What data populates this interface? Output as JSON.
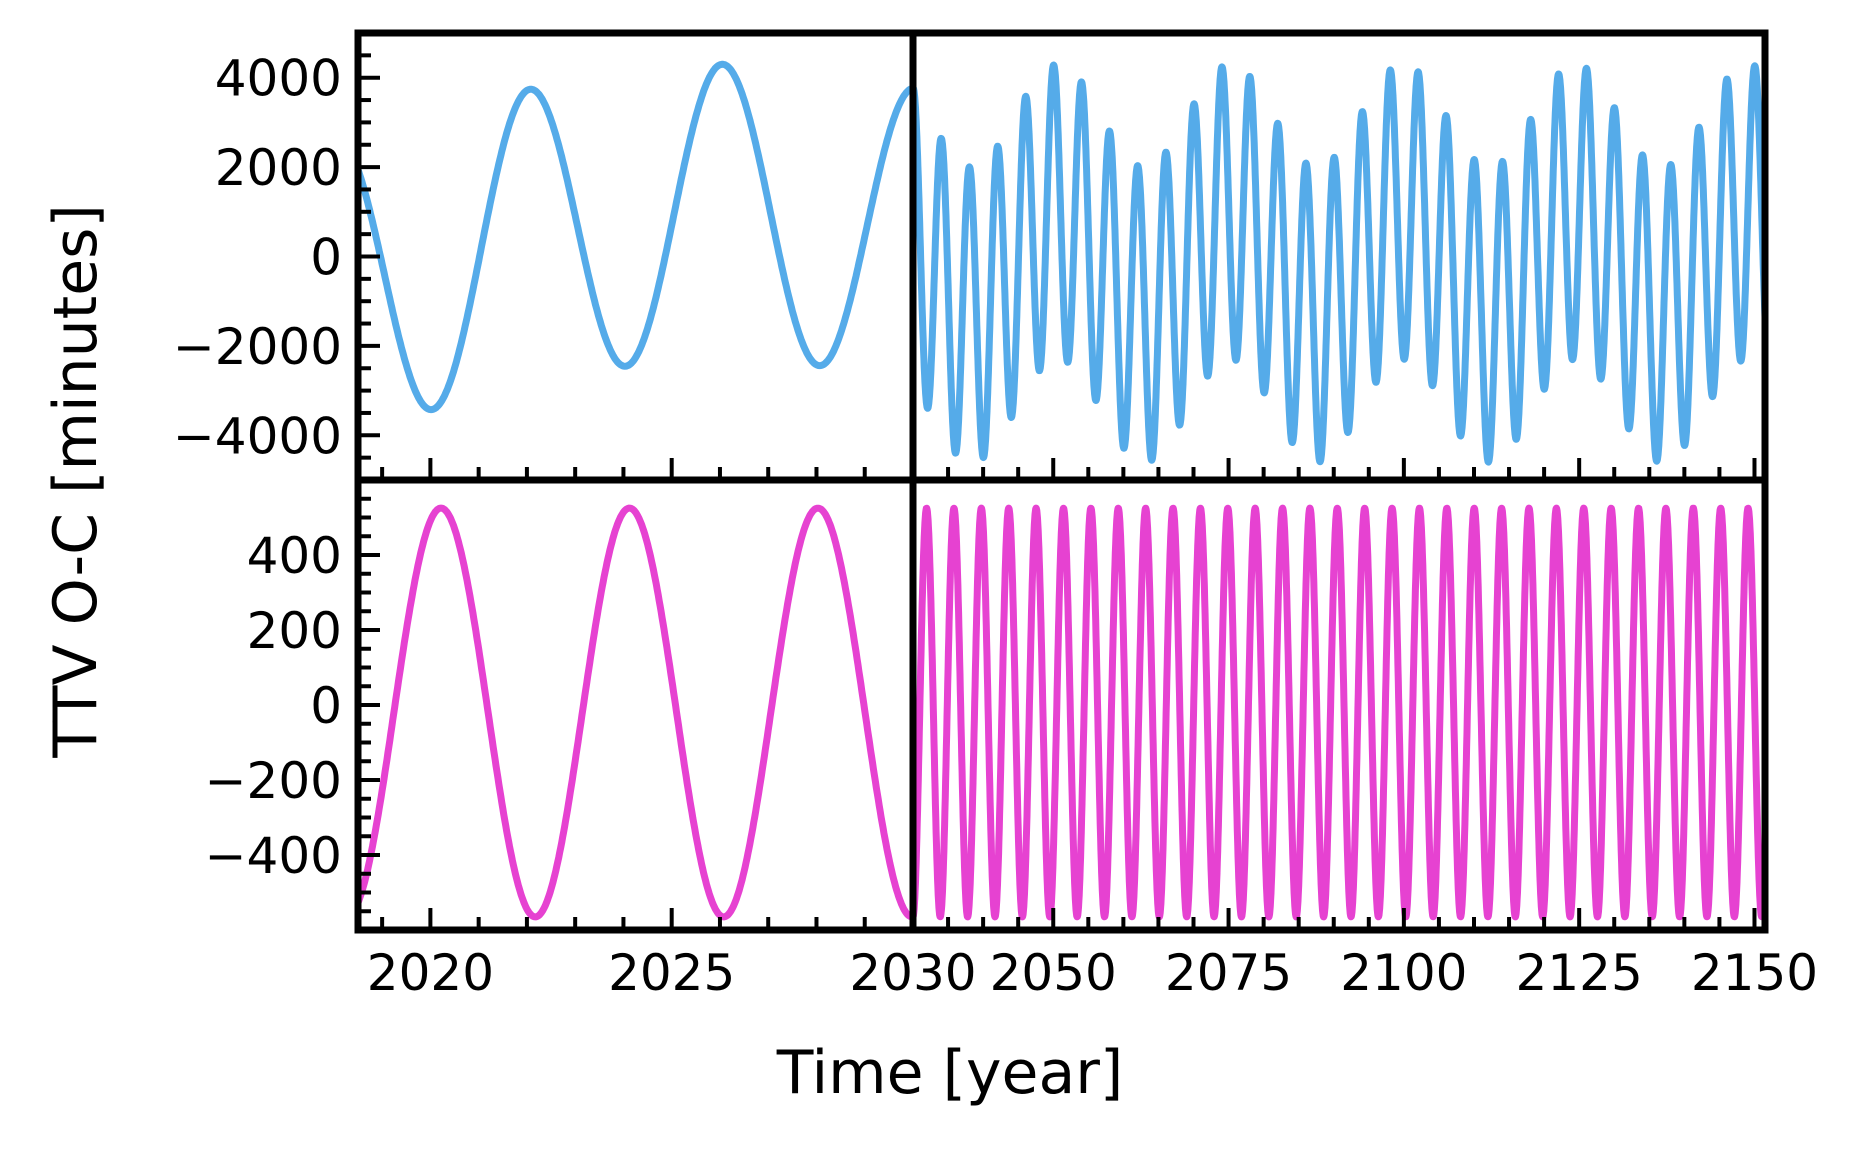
{
  "figure": {
    "background": "#ffffff"
  },
  "chart_data": {
    "type": "line",
    "title": "",
    "xlabel": "Time [year]",
    "ylabel": "TTV O-C [minutes]",
    "grid": false,
    "legend": false,
    "layout": "2x2 grid with broken x-axis: left column near-term window, right column long-term window; rows share y-ranges, columns share x-ranges",
    "columns": [
      {
        "id": "near-window",
        "xlim": [
          2018.5,
          2030
        ],
        "xticks": [
          2020,
          2025,
          2030
        ],
        "xtick_labels": [
          "2020",
          "2025",
          "2030"
        ],
        "xtick_minor_step": 1
      },
      {
        "id": "long-window",
        "xlim": [
          2030,
          2151.5
        ],
        "xticks": [
          2050,
          2075,
          2100,
          2125,
          2150
        ],
        "xtick_labels": [
          "2050",
          "2075",
          "2100",
          "2125",
          "2150"
        ],
        "xtick_minor_step": 5
      }
    ],
    "rows": [
      {
        "id": "ttv-series-blue",
        "color": "#55ABE9",
        "line_width": 7,
        "ylim": [
          -5000,
          5000
        ],
        "yticks": [
          4000,
          2000,
          0,
          -2000,
          -4000
        ],
        "ytick_labels": [
          "4000",
          "2000",
          "0",
          "−2000",
          "−4000"
        ],
        "ytick_minor_step": 500,
        "model": {
          "kind": "sum_of_cosines",
          "offset_minutes": -150,
          "components": [
            {
              "amplitude_minutes": 3300,
              "period_years": 4.0,
              "t_of_max": 2018.05
            },
            {
              "amplitude_minutes": 1150,
              "period_years": 24.6,
              "t_of_max": 2026.1
            }
          ]
        },
        "sample_step_years": [
          0.02,
          0.05
        ],
        "summary": "Beating TTV signal: ~4 yr cycle, peak amplitude modulated between ~2100 and ~4450 minutes with ~24.6 yr super-period; beat maxima near 2026, 2051, 2075, 2100, 2125, 2150"
      },
      {
        "id": "ttv-series-magenta",
        "color": "#E642D1",
        "line_width": 7,
        "ylim": [
          -600,
          600
        ],
        "yticks": [
          400,
          200,
          0,
          -200,
          -400
        ],
        "ytick_labels": [
          "400",
          "200",
          "0",
          "−200",
          "−400"
        ],
        "ytick_minor_step": 50,
        "model": {
          "kind": "sum_of_cosines",
          "offset_minutes": -20,
          "components": [
            {
              "amplitude_minutes": 545,
              "period_years": 3.905,
              "t_of_max": 2020.22
            }
          ]
        },
        "sample_step_years": [
          0.02,
          0.05
        ],
        "summary": "Near-sinusoidal TTV: ~3.9 yr period, maxima ~ +525 minutes, minima ~ −565 minutes; minima at 2022.2, 2026.1, 2030.0"
      }
    ]
  }
}
